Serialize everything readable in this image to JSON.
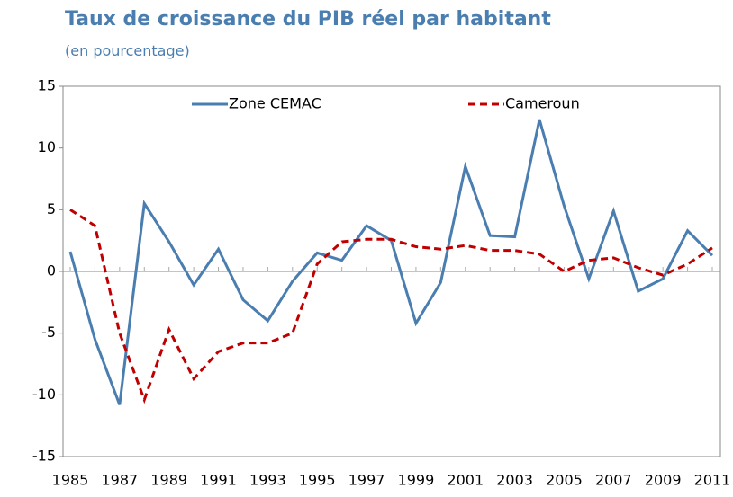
{
  "chart_data": {
    "type": "line",
    "title": "Taux de croissance du PIB réel par habitant",
    "subtitle": "(en pourcentage)",
    "x": [
      1985,
      1986,
      1987,
      1988,
      1989,
      1990,
      1991,
      1992,
      1993,
      1994,
      1995,
      1996,
      1997,
      1998,
      1999,
      2000,
      2001,
      2002,
      2003,
      2004,
      2005,
      2006,
      2007,
      2008,
      2009,
      2010,
      2011
    ],
    "xticks": [
      1985,
      1987,
      1989,
      1991,
      1993,
      1995,
      1997,
      1999,
      2001,
      2003,
      2005,
      2007,
      2009,
      2011
    ],
    "xlim": [
      1985,
      2011
    ],
    "series": [
      {
        "name": "Zone CEMAC",
        "color": "#4a7eb0",
        "dashed": false,
        "values": [
          1.6,
          -5.5,
          -10.8,
          5.5,
          2.4,
          -1.1,
          1.8,
          -2.3,
          -4.0,
          -0.8,
          1.5,
          0.9,
          3.7,
          2.5,
          -4.2,
          -0.9,
          8.5,
          2.9,
          2.8,
          12.3,
          5.3,
          -0.6,
          4.9,
          -1.6,
          -0.6,
          3.3,
          1.3
        ]
      },
      {
        "name": "Cameroun",
        "color": "#c00000",
        "dashed": true,
        "values": [
          5.0,
          3.7,
          -5.0,
          -10.4,
          -4.7,
          -8.7,
          -6.5,
          -5.8,
          -5.8,
          -5.0,
          0.6,
          2.4,
          2.6,
          2.6,
          2.0,
          1.8,
          2.1,
          1.7,
          1.7,
          1.4,
          0.0,
          0.9,
          1.1,
          0.3,
          -0.3,
          0.6,
          1.9
        ]
      }
    ],
    "ylim": [
      -15,
      15
    ],
    "yticks": [
      -15,
      -10,
      -5,
      0,
      5,
      10,
      15
    ],
    "grid": false
  }
}
